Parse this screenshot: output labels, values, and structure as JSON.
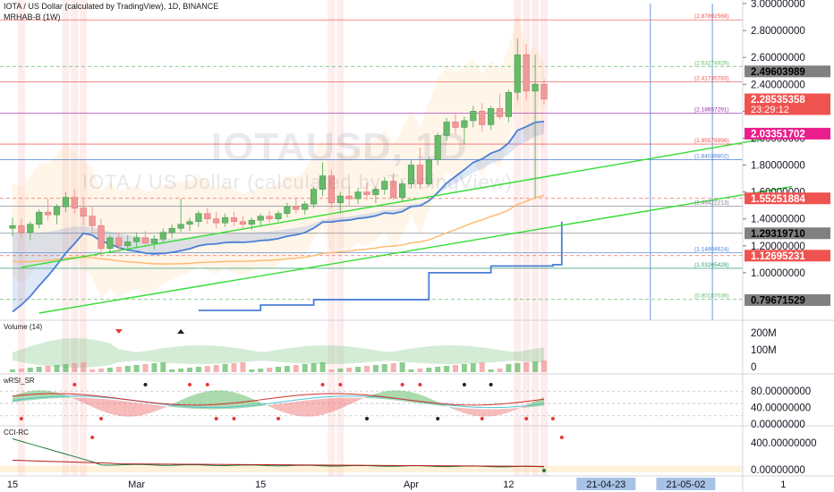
{
  "header": {
    "title": "IOTA / US Dollar (calculated by TradingView), 1D, BINANCE",
    "indicator": "MRHAB-B (1W)"
  },
  "watermark": {
    "symbol": "IOTAUSD, 1D",
    "name": "IOTA / US Dollar (calculated by TradingView)"
  },
  "colors": {
    "up": "#66bb6a",
    "down": "#ef9a9a",
    "support_line": "#33dd33",
    "ma_blue": "#4a7fd4",
    "ma_orange": "#ffb86b",
    "price_tag": "#ef5350",
    "magenta_tag": "#e91e8c",
    "gray_tag": "#808080",
    "date_tag": "#a8c2e6"
  },
  "chart_data": [
    {
      "pane": "price",
      "type": "candlestick",
      "y_axis": {
        "min": 0.7,
        "max": 3.0,
        "ticks": [
          "3.00000000",
          "2.80000000",
          "2.60000000",
          "2.40000000",
          "2.20000000",
          "2.00000000",
          "1.80000000",
          "1.60000000",
          "1.40000000",
          "1.20000000",
          "1.00000000"
        ],
        "tick_values": [
          3.0,
          2.8,
          2.6,
          2.4,
          2.2,
          2.0,
          1.8,
          1.6,
          1.4,
          1.2,
          1.0
        ]
      },
      "x_axis": {
        "labels": [
          "15",
          "Mar",
          "15",
          "Apr",
          "12",
          "21-04-23",
          "21-05-02",
          "1"
        ],
        "label_days": [
          0,
          14,
          28,
          45,
          56,
          67,
          76,
          87
        ],
        "highlighted_labels": [
          "21-04-23",
          "21-05-02"
        ]
      },
      "ohlc_by_day": [
        [
          1.33,
          1.41,
          1.27,
          1.35
        ],
        [
          1.35,
          1.4,
          1.26,
          1.3
        ],
        [
          1.3,
          1.38,
          1.24,
          1.36
        ],
        [
          1.36,
          1.47,
          1.33,
          1.45
        ],
        [
          1.45,
          1.55,
          1.39,
          1.43
        ],
        [
          1.43,
          1.51,
          1.36,
          1.49
        ],
        [
          1.49,
          1.6,
          1.45,
          1.56
        ],
        [
          1.56,
          1.62,
          1.44,
          1.48
        ],
        [
          1.48,
          1.56,
          1.35,
          1.42
        ],
        [
          1.42,
          1.49,
          1.3,
          1.35
        ],
        [
          1.35,
          1.4,
          1.12,
          1.18
        ],
        [
          1.18,
          1.28,
          1.15,
          1.26
        ],
        [
          1.26,
          1.3,
          1.15,
          1.2
        ],
        [
          1.2,
          1.28,
          1.16,
          1.23
        ],
        [
          1.23,
          1.3,
          1.18,
          1.26
        ],
        [
          1.26,
          1.31,
          1.19,
          1.22
        ],
        [
          1.22,
          1.28,
          1.17,
          1.25
        ],
        [
          1.25,
          1.33,
          1.22,
          1.3
        ],
        [
          1.3,
          1.36,
          1.26,
          1.33
        ],
        [
          1.33,
          1.55,
          1.3,
          1.36
        ],
        [
          1.36,
          1.41,
          1.31,
          1.38
        ],
        [
          1.38,
          1.46,
          1.34,
          1.44
        ],
        [
          1.44,
          1.48,
          1.36,
          1.4
        ],
        [
          1.4,
          1.45,
          1.33,
          1.37
        ],
        [
          1.37,
          1.44,
          1.34,
          1.41
        ],
        [
          1.41,
          1.45,
          1.35,
          1.38
        ],
        [
          1.38,
          1.42,
          1.33,
          1.36
        ],
        [
          1.36,
          1.41,
          1.32,
          1.39
        ],
        [
          1.39,
          1.44,
          1.35,
          1.42
        ],
        [
          1.42,
          1.46,
          1.37,
          1.4
        ],
        [
          1.4,
          1.46,
          1.38,
          1.44
        ],
        [
          1.44,
          1.52,
          1.41,
          1.49
        ],
        [
          1.49,
          1.56,
          1.44,
          1.47
        ],
        [
          1.47,
          1.53,
          1.43,
          1.51
        ],
        [
          1.51,
          1.64,
          1.48,
          1.62
        ],
        [
          1.62,
          1.82,
          1.57,
          1.72
        ],
        [
          1.72,
          1.76,
          1.48,
          1.52
        ],
        [
          1.52,
          1.6,
          1.44,
          1.57
        ],
        [
          1.57,
          1.64,
          1.5,
          1.55
        ],
        [
          1.55,
          1.63,
          1.51,
          1.6
        ],
        [
          1.6,
          1.67,
          1.54,
          1.58
        ],
        [
          1.58,
          1.64,
          1.52,
          1.62
        ],
        [
          1.62,
          1.71,
          1.58,
          1.68
        ],
        [
          1.68,
          1.74,
          1.54,
          1.56
        ],
        [
          1.56,
          1.68,
          1.53,
          1.66
        ],
        [
          1.66,
          1.84,
          1.63,
          1.8
        ],
        [
          1.8,
          1.93,
          1.62,
          1.66
        ],
        [
          1.66,
          1.86,
          1.64,
          1.84
        ],
        [
          1.84,
          2.04,
          1.8,
          2.02
        ],
        [
          2.02,
          2.15,
          1.98,
          2.12
        ],
        [
          2.12,
          2.18,
          2.03,
          2.08
        ],
        [
          2.08,
          2.16,
          1.96,
          2.13
        ],
        [
          2.13,
          2.24,
          2.08,
          2.2
        ],
        [
          2.2,
          2.26,
          2.05,
          2.1
        ],
        [
          2.1,
          2.24,
          2.06,
          2.22
        ],
        [
          2.22,
          2.33,
          2.14,
          2.16
        ],
        [
          2.16,
          2.36,
          2.12,
          2.34
        ],
        [
          2.34,
          2.74,
          2.28,
          2.62
        ],
        [
          2.62,
          2.7,
          2.28,
          2.35
        ],
        [
          2.35,
          2.62,
          1.56,
          2.4
        ],
        [
          2.4,
          2.44,
          2.25,
          2.29
        ]
      ],
      "horizontal_levels": [
        {
          "value": 2.87892568,
          "label": "(2.87892568)",
          "color": "#ef5350"
        },
        {
          "value": 2.53274929,
          "label": "(2.53274929)",
          "color": "#66bb6a",
          "dashed": true
        },
        {
          "value": 2.41735783,
          "label": "(2.41735783)",
          "color": "#ef5350"
        },
        {
          "value": 2.18657291,
          "label": "(2.18657291)",
          "color": "#9c27b0"
        },
        {
          "value": 1.95578998,
          "label": "(1.95578998)",
          "color": "#ef5350"
        },
        {
          "value": 1.84039802,
          "label": "(1.84039802)",
          "color": "#4a7fd4"
        },
        {
          "value": 1.55251884,
          "label": "",
          "color": "#ef5350",
          "dashed": true
        },
        {
          "value": 1.49422213,
          "label": "(1.49422213)",
          "color": "#787b86"
        },
        {
          "value": 1.2931971,
          "label": "",
          "color": "#787b86"
        },
        {
          "value": 1.14804624,
          "label": "(1.14804624)",
          "color": "#4a7fd4"
        },
        {
          "value": 1.12695231,
          "label": "",
          "color": "#ef5350",
          "dashed": true
        },
        {
          "value": 1.03265428,
          "label": "(1.03265428)",
          "color": "#2e9e6e"
        },
        {
          "value": 0.80187036,
          "label": "(0.80187036)",
          "color": "#66bb6a",
          "dashed": true
        }
      ],
      "price_tags": [
        {
          "value": 2.49603989,
          "text": "2.49603989",
          "style": "gray"
        },
        {
          "value": 2.28535358,
          "text": "2.28535358",
          "sub": "23:29:12",
          "style": "red"
        },
        {
          "value": 2.03351702,
          "text": "2.03351702",
          "style": "magenta"
        },
        {
          "value": 1.55251884,
          "text": "1.55251884",
          "style": "red"
        },
        {
          "value": 1.2931971,
          "text": "1.29319710",
          "style": "gray"
        },
        {
          "value": 1.12695231,
          "text": "1.12695231",
          "style": "red"
        },
        {
          "value": 0.79671529,
          "text": "0.79671529",
          "style": "gray"
        }
      ],
      "trendlines": [
        {
          "from": [
            1,
            1.04
          ],
          "to": [
            88,
            2.03
          ]
        },
        {
          "from": [
            3,
            0.7
          ],
          "to": [
            88,
            1.64
          ]
        }
      ],
      "vertical_markers": [
        72,
        79
      ]
    },
    {
      "pane": "volume",
      "type": "bar",
      "title": "Volume (14)",
      "ticks": [
        "200M",
        "100M",
        "0"
      ],
      "tick_values": [
        200,
        100,
        0
      ]
    },
    {
      "pane": "wrsi",
      "type": "line",
      "title": "wRSI_SR",
      "ticks": [
        "80.00000000",
        "40.00000000",
        "0.00000000"
      ],
      "tick_values": [
        80,
        40,
        0
      ],
      "levels": [
        80,
        50,
        20
      ]
    },
    {
      "pane": "cci",
      "type": "line",
      "title": "CCI-RC",
      "ticks": [
        "400.00000000",
        "0.00000000"
      ],
      "tick_values": [
        400,
        0
      ]
    }
  ]
}
